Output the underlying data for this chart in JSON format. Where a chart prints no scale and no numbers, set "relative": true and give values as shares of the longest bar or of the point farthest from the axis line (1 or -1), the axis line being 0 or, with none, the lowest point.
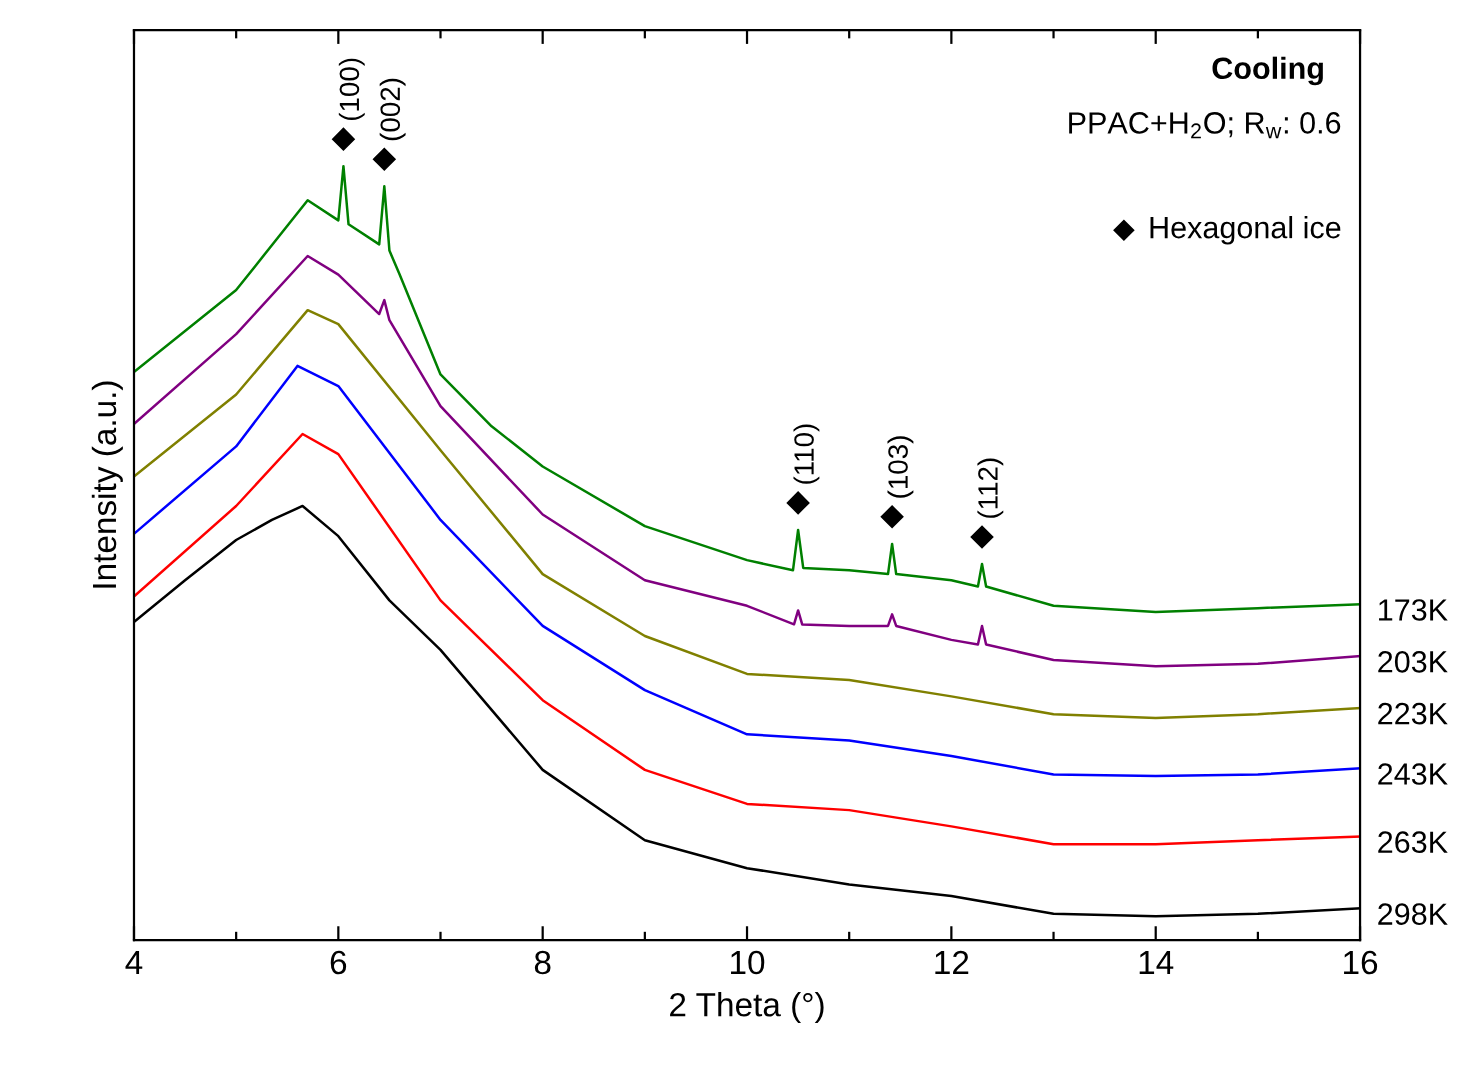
{
  "chart_data": {
    "type": "line",
    "relative": true,
    "xlabel": "2 Theta (°)",
    "ylabel": "Intensity (a.u.)",
    "xlim": [
      4,
      16
    ],
    "xticks": [
      4,
      {
        "value": 5,
        "label": null
      },
      6,
      {
        "value": 7,
        "label": null
      },
      8,
      {
        "value": 9,
        "label": null
      },
      10,
      {
        "value": 11,
        "label": null
      },
      12,
      {
        "value": 13,
        "label": null
      },
      14,
      {
        "value": 15,
        "label": null
      },
      16
    ],
    "grid": false,
    "legend": false,
    "marker": "none",
    "line_style": "solid",
    "series": [
      {
        "name": "173K",
        "color": "#008000",
        "x": [
          4,
          5,
          5.7,
          6.0,
          6.05,
          6.1,
          6.4,
          6.45,
          6.5,
          6.6,
          7,
          7.5,
          8,
          9,
          10,
          10.45,
          10.5,
          10.55,
          11,
          11.38,
          11.42,
          11.46,
          12,
          12.26,
          12.3,
          12.34,
          13,
          14,
          15,
          16
        ],
        "values": [
          0.734,
          0.84,
          0.956,
          0.93,
          1.0,
          0.925,
          0.899,
          0.974,
          0.891,
          0.86,
          0.731,
          0.664,
          0.612,
          0.535,
          0.491,
          0.478,
          0.53,
          0.481,
          0.478,
          0.473,
          0.512,
          0.473,
          0.465,
          0.457,
          0.486,
          0.457,
          0.432,
          0.424,
          0.429,
          0.434
        ]
      },
      {
        "name": "203K",
        "color": "#800080",
        "x": [
          4,
          5,
          5.7,
          6,
          6.4,
          6.45,
          6.5,
          7,
          8,
          9,
          10,
          10.46,
          10.5,
          10.54,
          11,
          11.38,
          11.42,
          11.46,
          12,
          12.26,
          12.3,
          12.34,
          13,
          14,
          15,
          16
        ],
        "values": [
          0.667,
          0.783,
          0.884,
          0.86,
          0.809,
          0.827,
          0.801,
          0.69,
          0.55,
          0.465,
          0.432,
          0.408,
          0.426,
          0.408,
          0.406,
          0.406,
          0.421,
          0.406,
          0.388,
          0.382,
          0.406,
          0.382,
          0.362,
          0.354,
          0.357,
          0.367
        ]
      },
      {
        "name": "223K",
        "color": "#808000",
        "x": [
          4,
          5,
          5.7,
          6,
          7,
          8,
          9,
          10,
          11,
          12,
          13,
          14,
          15,
          16
        ],
        "values": [
          0.599,
          0.705,
          0.814,
          0.796,
          0.633,
          0.473,
          0.393,
          0.344,
          0.336,
          0.315,
          0.292,
          0.287,
          0.292,
          0.3
        ]
      },
      {
        "name": "243K",
        "color": "#0000ff",
        "x": [
          4,
          5,
          5.6,
          6,
          7,
          8,
          9,
          10,
          11,
          12,
          13,
          14,
          15,
          16
        ],
        "values": [
          0.525,
          0.638,
          0.742,
          0.716,
          0.543,
          0.406,
          0.323,
          0.266,
          0.258,
          0.238,
          0.214,
          0.212,
          0.214,
          0.222
        ]
      },
      {
        "name": "263K",
        "color": "#ff0000",
        "x": [
          4,
          5,
          5.65,
          6,
          7,
          8,
          9,
          10,
          11,
          12,
          13,
          14,
          15,
          16
        ],
        "values": [
          0.444,
          0.561,
          0.654,
          0.628,
          0.439,
          0.31,
          0.22,
          0.176,
          0.168,
          0.147,
          0.124,
          0.124,
          0.129,
          0.134
        ]
      },
      {
        "name": "298K",
        "color": "#000000",
        "x": [
          4,
          4.5,
          5,
          5.35,
          5.65,
          6,
          6.5,
          7,
          8,
          9,
          10,
          11,
          12,
          13,
          14,
          15,
          16
        ],
        "values": [
          0.411,
          0.465,
          0.517,
          0.543,
          0.561,
          0.522,
          0.439,
          0.375,
          0.22,
          0.129,
          0.093,
          0.072,
          0.057,
          0.034,
          0.031,
          0.034,
          0.041
        ]
      }
    ],
    "annotations": [
      {
        "text": "(100)",
        "x": 6.05,
        "y": 1.0
      },
      {
        "text": "(002)",
        "x": 6.45,
        "y": 0.974
      },
      {
        "text": "(110)",
        "x": 10.5,
        "y": 0.53
      },
      {
        "text": "(103)",
        "x": 11.42,
        "y": 0.512
      },
      {
        "text": "(112)",
        "x": 12.3,
        "y": 0.486
      },
      "Cooling",
      "PPAC+H$_{2}$O; R$_{w}$: 0.6",
      "Hexagonal ice"
    ]
  }
}
